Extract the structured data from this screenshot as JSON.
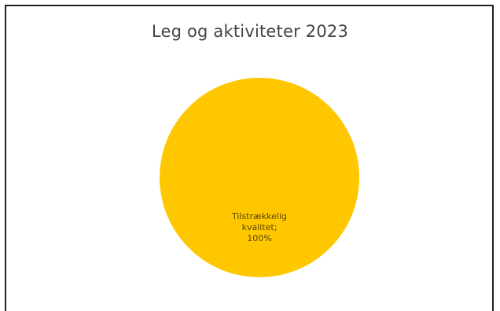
{
  "chart_data": {
    "type": "pie",
    "title": "Leg og aktiviteter 2023",
    "slices": [
      {
        "label_lines": [
          "Tilstrækkelig",
          "kvalitet;",
          "100%"
        ],
        "value": 100,
        "color": "#FFC700"
      }
    ]
  }
}
